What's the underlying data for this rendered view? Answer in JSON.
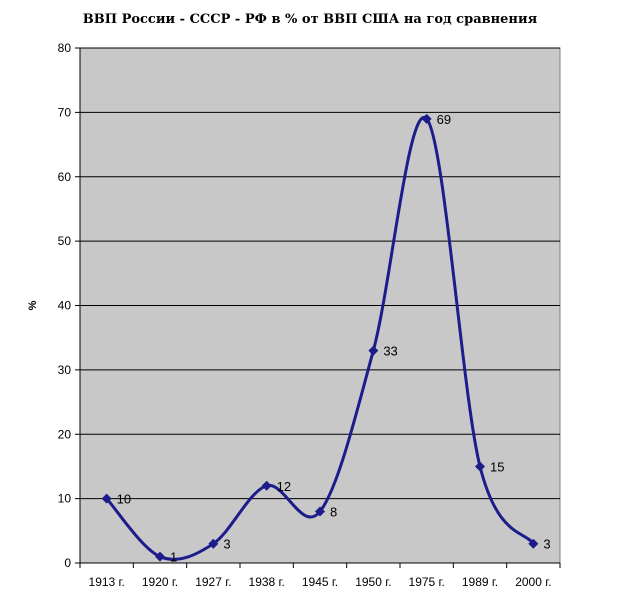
{
  "chart_data": {
    "type": "line",
    "title": "ВВП России - СССР - РФ в % от ВВП США на год сравнения",
    "xlabel": "",
    "ylabel": "%",
    "categories": [
      "1913 г.",
      "1920 г.",
      "1927 г.",
      "1938 г.",
      "1945 г.",
      "1950 г.",
      "1975 г.",
      "1989 г.",
      "2000 г."
    ],
    "series": [
      {
        "name": "",
        "values": [
          10,
          1,
          3,
          12,
          8,
          33,
          69,
          15,
          3
        ]
      }
    ],
    "data_labels": [
      "10",
      "1",
      "3",
      "12",
      "8",
      "33",
      "69",
      "15",
      "3"
    ],
    "ylim": [
      0,
      80
    ],
    "yticks": [
      "0",
      "10",
      "20",
      "30",
      "40",
      "50",
      "60",
      "70",
      "80"
    ],
    "grid": true,
    "smooth": true,
    "legend": "none",
    "colors": {
      "line": "#1c1c8a",
      "plot_background": "#c8c8c8",
      "grid": "#000000"
    }
  }
}
